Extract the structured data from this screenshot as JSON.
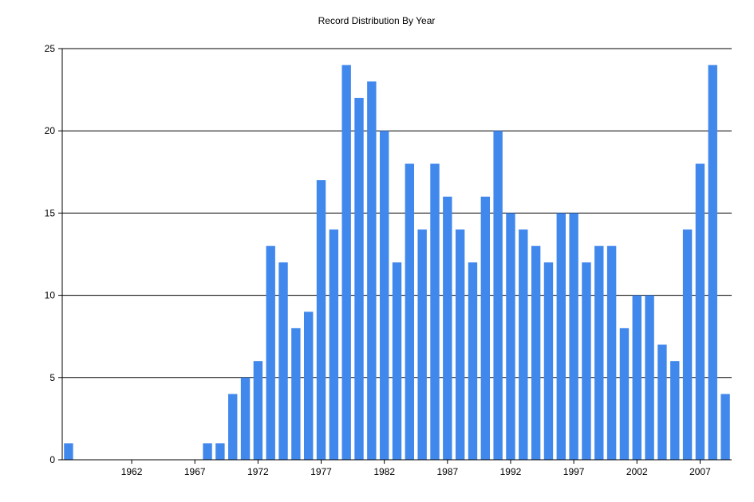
{
  "chart_data": {
    "type": "bar",
    "title": "Record Distribution By Year",
    "xlabel": "",
    "ylabel": "",
    "x": [
      1957,
      1958,
      1959,
      1960,
      1961,
      1962,
      1963,
      1964,
      1965,
      1966,
      1967,
      1968,
      1969,
      1970,
      1971,
      1972,
      1973,
      1974,
      1975,
      1976,
      1977,
      1978,
      1979,
      1980,
      1981,
      1982,
      1983,
      1984,
      1985,
      1986,
      1987,
      1988,
      1989,
      1990,
      1991,
      1992,
      1993,
      1994,
      1995,
      1996,
      1997,
      1998,
      1999,
      2000,
      2001,
      2002,
      2003,
      2004,
      2005,
      2006,
      2007,
      2008,
      2009
    ],
    "values": [
      1,
      0,
      0,
      0,
      0,
      0,
      0,
      0,
      0,
      0,
      0,
      1,
      1,
      4,
      5,
      6,
      13,
      12,
      8,
      9,
      17,
      14,
      24,
      22,
      23,
      20,
      12,
      18,
      14,
      18,
      16,
      14,
      12,
      16,
      20,
      15,
      14,
      13,
      12,
      15,
      15,
      12,
      13,
      13,
      8,
      10,
      10,
      7,
      6,
      14,
      18,
      24,
      4
    ],
    "x_tick_labels": [
      "1962",
      "1967",
      "1972",
      "1977",
      "1982",
      "1987",
      "1992",
      "1997",
      "2002",
      "2007"
    ],
    "y_tick_labels": [
      "0",
      "5",
      "10",
      "15",
      "20",
      "25"
    ],
    "ylim": [
      0,
      25
    ],
    "grid": "horizontal",
    "legend": "none",
    "bar_color": "#4188ED",
    "grid_color": "#000000"
  }
}
